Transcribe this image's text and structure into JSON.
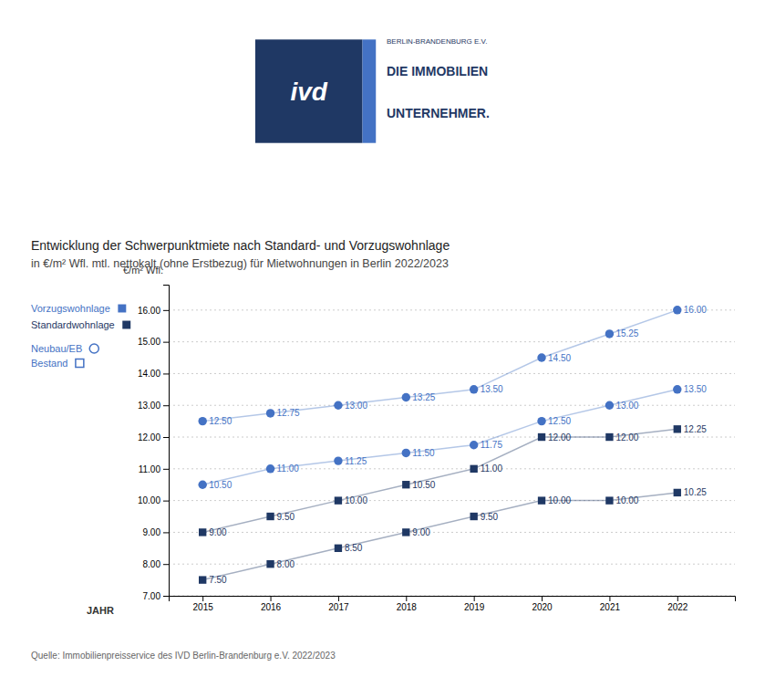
{
  "chart_data": {
    "type": "line",
    "title": "Entwicklung der Schwerpunktmiete nach Standard- und Vorzugswohnlage",
    "subtitle": "in €/m² Wfl. mtl. nettokalt (ohne Erstbezug) für Mietwohnungen in Berlin 2022/2023",
    "xlabel": "JAHR",
    "ylabel": "€/m² Wfl.",
    "x": [
      2015,
      2016,
      2017,
      2018,
      2019,
      2020,
      2021,
      2022
    ],
    "xlim": [
      2014.5,
      2022.85
    ],
    "xticks": [
      2015,
      2016,
      2017,
      2018,
      2019,
      2020,
      2021,
      2022
    ],
    "ylim": [
      7.0,
      16.8
    ],
    "yticks": [
      {
        "value": 7.0,
        "label": "7.00"
      },
      {
        "value": 8.0,
        "label": "8.00"
      },
      {
        "value": 9.0,
        "label": "9.00"
      },
      {
        "value": 10.0,
        "label": "10.00"
      },
      {
        "value": 11.0,
        "label": "11.00"
      },
      {
        "value": 12.0,
        "label": "12.00"
      },
      {
        "value": 13.0,
        "label": "13.00"
      },
      {
        "value": 14.0,
        "label": "14.00"
      },
      {
        "value": 15.0,
        "label": "15.00"
      },
      {
        "value": 16.0,
        "label": "16.00"
      }
    ],
    "grid": true,
    "data_labels": true,
    "series": [
      {
        "color": "#4472C4",
        "marker": "circle",
        "values": [
          12.5,
          12.75,
          13.0,
          13.25,
          13.5,
          14.5,
          15.25,
          16.0
        ],
        "value_labels": [
          "12.50",
          "12.75",
          "13.00",
          "13.25",
          "13.50",
          "14.50",
          "15.25",
          "16.00"
        ]
      },
      {
        "color": "#4472C4",
        "marker": "circle",
        "values": [
          10.5,
          11.0,
          11.25,
          11.5,
          11.75,
          12.5,
          13.0,
          13.5
        ],
        "value_labels": [
          "10.50",
          "11.00",
          "11.25",
          "11.50",
          "11.75",
          "12.50",
          "13.00",
          "13.50"
        ]
      },
      {
        "color": "#1F3864",
        "marker": "square",
        "values": [
          9.0,
          9.5,
          10.0,
          10.5,
          11.0,
          12.0,
          12.0,
          12.25
        ],
        "value_labels": [
          "9.00",
          "9.50",
          "10.00",
          "10.50",
          "11.00",
          "12.00",
          "12.00",
          "12.25"
        ]
      },
      {
        "color": "#1F3864",
        "marker": "square",
        "values": [
          7.5,
          8.0,
          8.5,
          9.0,
          9.5,
          10.0,
          10.0,
          10.25
        ],
        "value_labels": [
          "7.50",
          "8.00",
          "8.50",
          "9.00",
          "9.50",
          "10.00",
          "10.00",
          "10.25"
        ]
      }
    ],
    "annotations": [
      "Vorzugswohnlage",
      "Standardwohnlage",
      "Neubau/EB",
      "Bestand",
      "ivd",
      "BERLIN-BRANDENBURG E.V.",
      "DIE IMMOBILIEN",
      "UNTERNEHMER.",
      "Quelle: Immobilienpreisservice des IVD Berlin-Brandenburg e.V. 2022/2023"
    ]
  }
}
